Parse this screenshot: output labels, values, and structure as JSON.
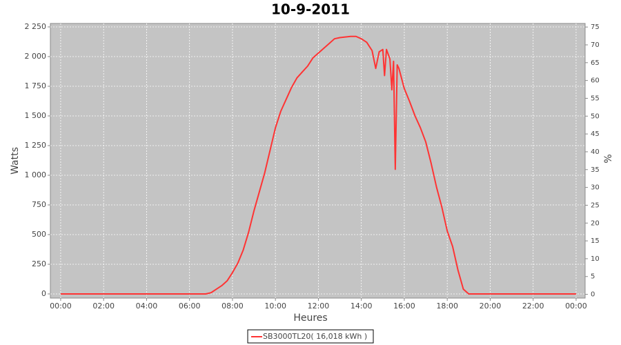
{
  "chart_data": {
    "type": "line",
    "title": "10-9-2011",
    "x_label": "Heures",
    "y_label": "Watts",
    "y2_label": "%",
    "grid": true,
    "legend": "bottom",
    "xlim": [
      -0.48,
      24.42
    ],
    "xticks": [
      {
        "value": 0,
        "label": "00:00"
      },
      {
        "value": 2,
        "label": "02:00"
      },
      {
        "value": 4,
        "label": "04:00"
      },
      {
        "value": 6,
        "label": "06:00"
      },
      {
        "value": 8,
        "label": "08:00"
      },
      {
        "value": 10,
        "label": "10:00"
      },
      {
        "value": 12,
        "label": "12:00"
      },
      {
        "value": 14,
        "label": "14:00"
      },
      {
        "value": 16,
        "label": "16:00"
      },
      {
        "value": 18,
        "label": "18:00"
      },
      {
        "value": 20,
        "label": "20:00"
      },
      {
        "value": 22,
        "label": "22:00"
      },
      {
        "value": 24,
        "label": "00:00"
      }
    ],
    "ylim": [
      -35,
      2279
    ],
    "yticks": [
      0,
      {
        "value": 250,
        "label": "250"
      },
      {
        "value": 500,
        "label": "500"
      },
      {
        "value": 750,
        "label": "750"
      },
      {
        "value": 1000,
        "label": "1 000"
      },
      {
        "value": 1250,
        "label": "1 250"
      },
      {
        "value": 1500,
        "label": "1 500"
      },
      {
        "value": 1750,
        "label": "1 750"
      },
      {
        "value": 2000,
        "label": "2 000"
      },
      {
        "value": 2250,
        "label": "2 250"
      }
    ],
    "y2lim": [
      -1.05,
      76.0
    ],
    "y2ticks": [
      0,
      5,
      10,
      15,
      20,
      25,
      30,
      35,
      40,
      45,
      50,
      55,
      60,
      65,
      70,
      75
    ],
    "x": [
      0,
      6.75,
      7,
      7.25,
      7.5,
      7.75,
      8,
      8.25,
      8.5,
      8.75,
      9,
      9.25,
      9.5,
      9.75,
      10,
      10.25,
      10.5,
      10.75,
      11,
      11.25,
      11.5,
      11.75,
      12,
      12.25,
      12.5,
      12.75,
      13,
      13.25,
      13.5,
      13.75,
      14,
      14.25,
      14.5,
      14.67,
      14.83,
      15,
      15.08,
      15.17,
      15.33,
      15.42,
      15.5,
      15.58,
      15.67,
      15.75,
      16,
      16.25,
      16.5,
      16.75,
      17,
      17.25,
      17.5,
      17.75,
      18,
      18.25,
      18.5,
      18.75,
      19,
      24
    ],
    "series": [
      {
        "name": "SB3000TL20( 16,018 kWh )",
        "color": "#ff3333",
        "values": [
          0,
          0,
          10,
          40,
          70,
          110,
          180,
          260,
          370,
          520,
          700,
          860,
          1020,
          1210,
          1400,
          1540,
          1640,
          1740,
          1820,
          1870,
          1920,
          1990,
          2030,
          2070,
          2110,
          2150,
          2160,
          2165,
          2170,
          2170,
          2150,
          2120,
          2050,
          1900,
          2040,
          2060,
          1840,
          2060,
          1980,
          1720,
          1960,
          1050,
          1930,
          1900,
          1730,
          1620,
          1500,
          1400,
          1280,
          1100,
          900,
          730,
          530,
          400,
          200,
          40,
          0,
          0
        ]
      }
    ]
  }
}
